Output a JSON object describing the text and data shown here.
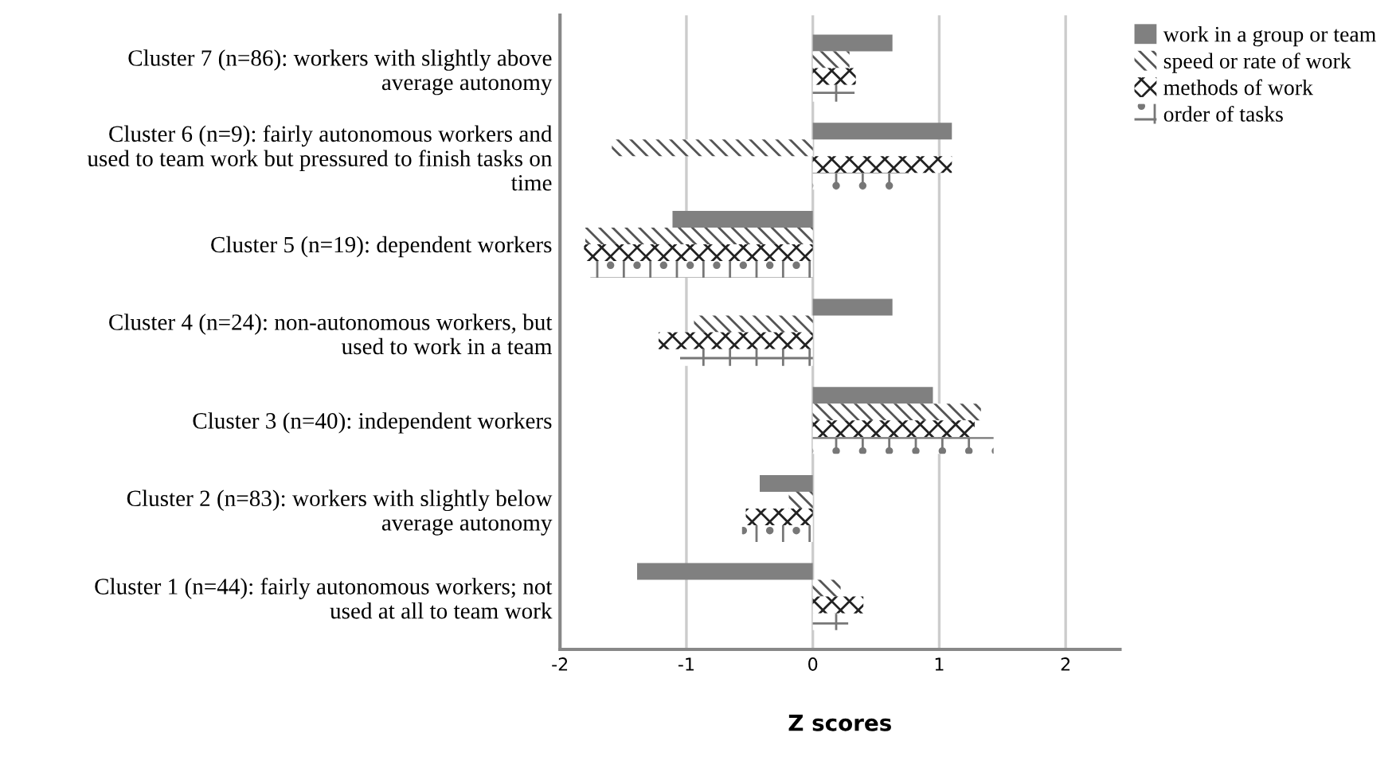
{
  "chart_data": {
    "type": "bar",
    "orientation": "horizontal",
    "xlabel": "Z scores",
    "categories": [
      "Cluster 7 (n=86): workers with slightly above\naverage autonomy",
      "Cluster 6 (n=9): fairly autonomous workers and\nused to team work but pressured to finish tasks on\ntime",
      "Cluster 5 (n=19): dependent workers",
      "Cluster 4 (n=24): non-autonomous workers, but\nused to work in a team",
      "Cluster 3 (n=40): independent workers",
      "Cluster 2 (n=83): workers with slightly below\naverage autonomy",
      "Cluster 1 (n=44): fairly autonomous workers; not\nused at all to team work"
    ],
    "series": [
      {
        "name": "work in a group or team",
        "color": "#808080",
        "values": [
          0.63,
          1.1,
          -1.11,
          0.63,
          0.95,
          -0.42,
          -1.39
        ]
      },
      {
        "name": "speed or rate of work",
        "color": "#555555",
        "values": [
          0.29,
          -1.59,
          -1.8,
          -0.94,
          1.33,
          -0.19,
          0.22
        ]
      },
      {
        "name": "methods of work",
        "color": "#222222",
        "values": [
          0.34,
          1.1,
          -1.81,
          -1.22,
          1.28,
          -0.53,
          0.4
        ]
      },
      {
        "name": "order of tasks",
        "color": "#777777",
        "values": [
          0.33,
          0.76,
          -1.76,
          -1.05,
          1.43,
          -0.56,
          0.28
        ]
      }
    ],
    "xlim": [
      -2,
      2.43
    ],
    "xticks": [
      -2,
      -1,
      0,
      1,
      2
    ],
    "grid": "x",
    "legend": "top right"
  }
}
